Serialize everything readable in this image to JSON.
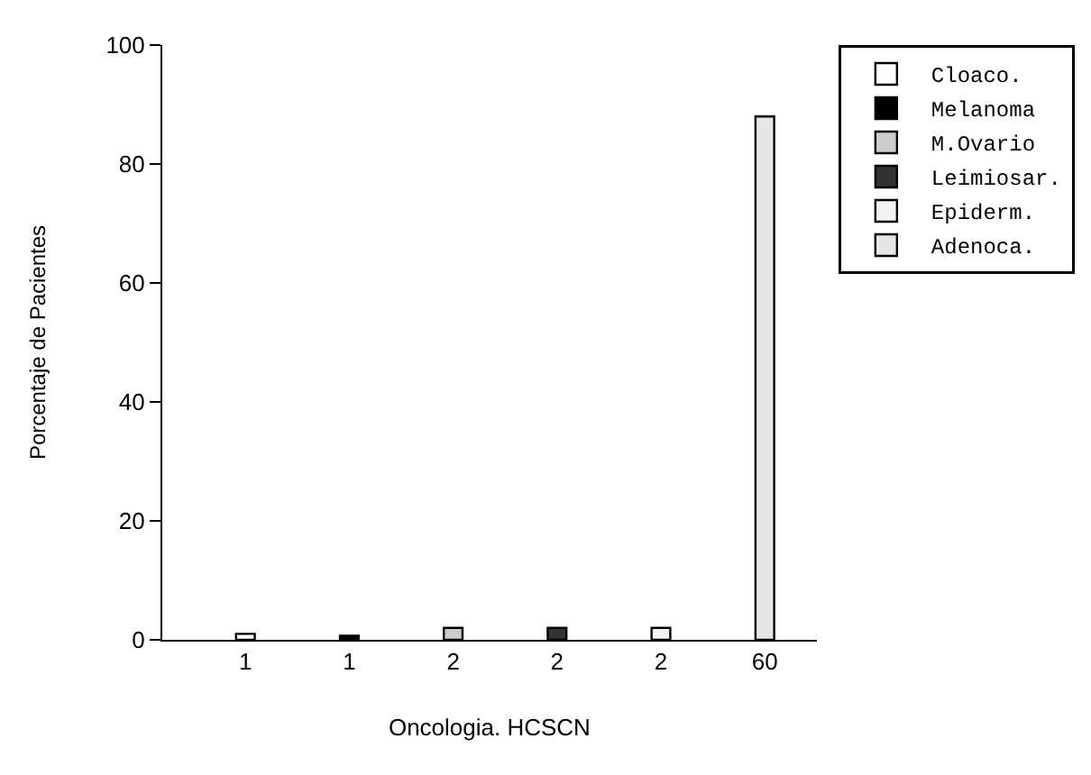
{
  "chart_data": {
    "type": "bar",
    "xlabel": "Oncologia. HCSCN",
    "ylabel": "Porcentaje de Pacientes",
    "categories": [
      "1",
      "1",
      "2",
      "2",
      "2",
      "60"
    ],
    "series": [
      {
        "name": "Cloaco.",
        "color": "#ffffff",
        "values": [
          1,
          null,
          null,
          null,
          null,
          null
        ]
      },
      {
        "name": "Melanoma",
        "color": "#000000",
        "values": [
          null,
          0.7,
          null,
          null,
          null,
          null
        ]
      },
      {
        "name": "M.Ovario",
        "color": "#cccccc",
        "values": [
          null,
          null,
          2,
          null,
          null,
          null
        ]
      },
      {
        "name": "Leimiosar.",
        "color": "#333333",
        "values": [
          null,
          null,
          null,
          2,
          null,
          null
        ]
      },
      {
        "name": "Epiderm.",
        "color": "#f2f2f2",
        "values": [
          null,
          null,
          null,
          null,
          2,
          null
        ]
      },
      {
        "name": "Adenoca.",
        "color": "#e6e6e6",
        "values": [
          null,
          null,
          null,
          null,
          null,
          88
        ]
      }
    ],
    "ylim": [
      0,
      100
    ],
    "yticks": [
      0,
      20,
      40,
      60,
      80,
      100
    ],
    "legend": "right"
  }
}
